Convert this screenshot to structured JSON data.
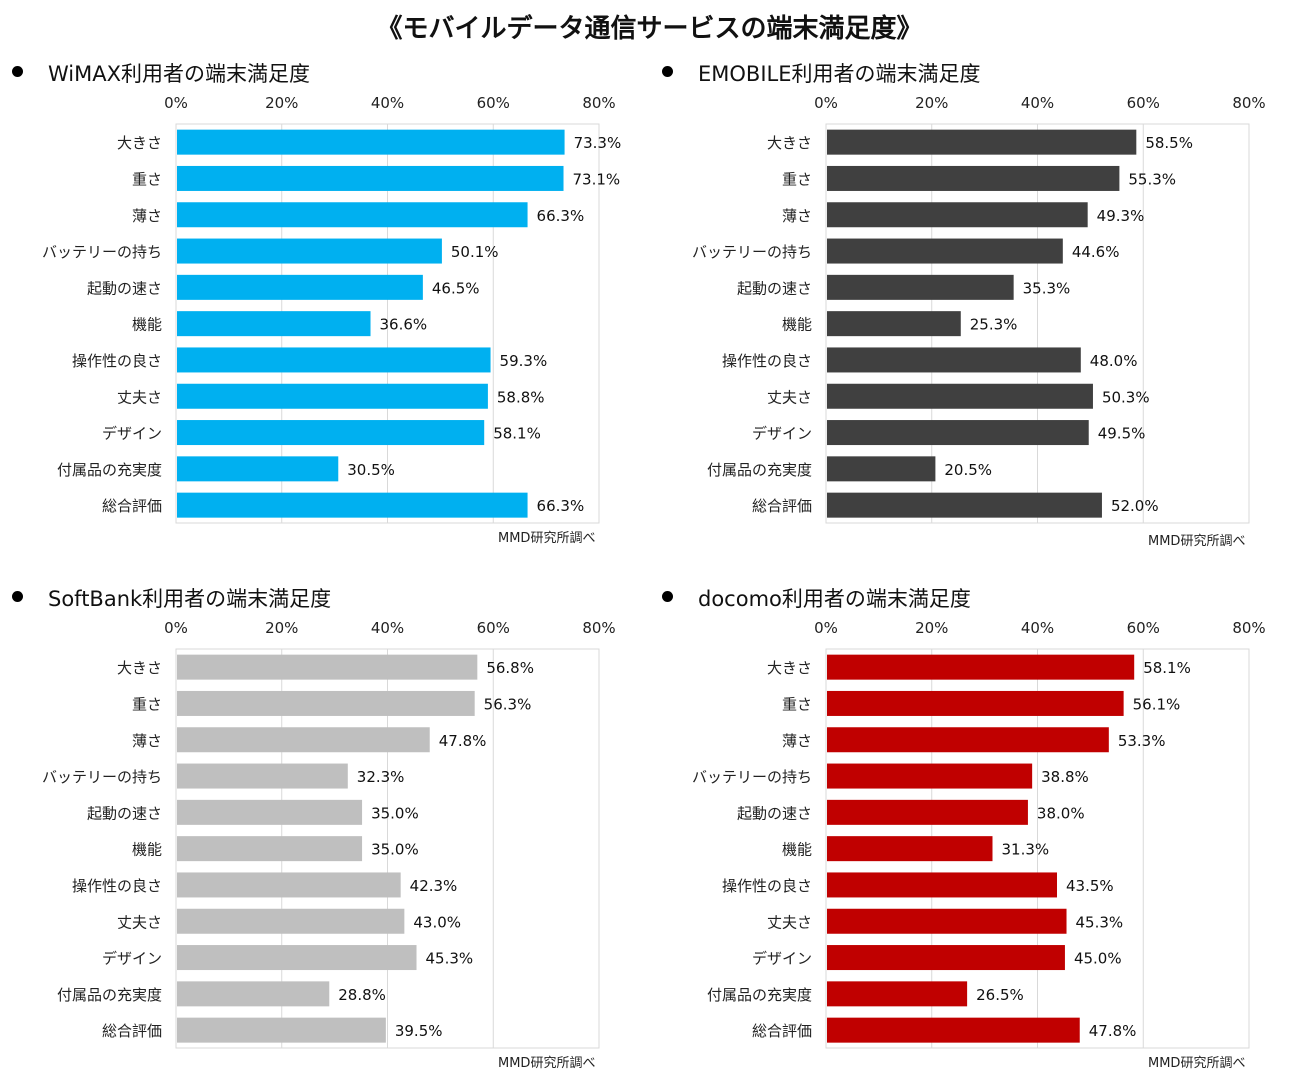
{
  "title": "《モバイルデータ通信サービスの端末満足度》",
  "source_note": "MMD研究所調べ",
  "x_ticks": [
    "0%",
    "20%",
    "40%",
    "60%",
    "80%"
  ],
  "categories": [
    "大きさ",
    "重さ",
    "薄さ",
    "バッテリーの持ち",
    "起動の速さ",
    "機能",
    "操作性の良さ",
    "丈夫さ",
    "デザイン",
    "付属品の充実度",
    "総合評価"
  ],
  "chart_data": [
    {
      "type": "bar",
      "orientation": "horizontal",
      "title": "WiMAX利用者の端末満足度",
      "categories": [
        "大きさ",
        "重さ",
        "薄さ",
        "バッテリーの持ち",
        "起動の速さ",
        "機能",
        "操作性の良さ",
        "丈夫さ",
        "デザイン",
        "付属品の充実度",
        "総合評価"
      ],
      "values": [
        73.3,
        73.1,
        66.3,
        50.1,
        46.5,
        36.6,
        59.3,
        58.8,
        58.1,
        30.5,
        66.3
      ],
      "labels": [
        "73.3%",
        "73.1%",
        "66.3%",
        "50.1%",
        "46.5%",
        "36.6%",
        "59.3%",
        "58.8%",
        "58.1%",
        "30.5%",
        "66.3%"
      ],
      "xlim": [
        0,
        80
      ],
      "color": "#00b0f0",
      "grid": true
    },
    {
      "type": "bar",
      "orientation": "horizontal",
      "title": "EMOBILE利用者の端末満足度",
      "categories": [
        "大きさ",
        "重さ",
        "薄さ",
        "バッテリーの持ち",
        "起動の速さ",
        "機能",
        "操作性の良さ",
        "丈夫さ",
        "デザイン",
        "付属品の充実度",
        "総合評価"
      ],
      "values": [
        58.5,
        55.3,
        49.3,
        44.6,
        35.3,
        25.3,
        48.0,
        50.3,
        49.5,
        20.5,
        52.0
      ],
      "labels": [
        "58.5%",
        "55.3%",
        "49.3%",
        "44.6%",
        "35.3%",
        "25.3%",
        "48.0%",
        "50.3%",
        "49.5%",
        "20.5%",
        "52.0%"
      ],
      "xlim": [
        0,
        80
      ],
      "color": "#404040",
      "grid": true
    },
    {
      "type": "bar",
      "orientation": "horizontal",
      "title": "SoftBank利用者の端末満足度",
      "categories": [
        "大きさ",
        "重さ",
        "薄さ",
        "バッテリーの持ち",
        "起動の速さ",
        "機能",
        "操作性の良さ",
        "丈夫さ",
        "デザイン",
        "付属品の充実度",
        "総合評価"
      ],
      "values": [
        56.8,
        56.3,
        47.8,
        32.3,
        35.0,
        35.0,
        42.3,
        43.0,
        45.3,
        28.8,
        39.5
      ],
      "labels": [
        "56.8%",
        "56.3%",
        "47.8%",
        "32.3%",
        "35.0%",
        "35.0%",
        "42.3%",
        "43.0%",
        "45.3%",
        "28.8%",
        "39.5%"
      ],
      "xlim": [
        0,
        80
      ],
      "color": "#bfbfbf",
      "grid": true
    },
    {
      "type": "bar",
      "orientation": "horizontal",
      "title": "docomo利用者の端末満足度",
      "categories": [
        "大きさ",
        "重さ",
        "薄さ",
        "バッテリーの持ち",
        "起動の速さ",
        "機能",
        "操作性の良さ",
        "丈夫さ",
        "デザイン",
        "付属品の充実度",
        "総合評価"
      ],
      "values": [
        58.1,
        56.1,
        53.3,
        38.8,
        38.0,
        31.3,
        43.5,
        45.3,
        45.0,
        26.5,
        47.8
      ],
      "labels": [
        "58.1%",
        "56.1%",
        "53.3%",
        "38.8%",
        "38.0%",
        "31.3%",
        "43.5%",
        "45.3%",
        "45.0%",
        "26.5%",
        "47.8%"
      ],
      "xlim": [
        0,
        80
      ],
      "color": "#c00000",
      "grid": true
    }
  ]
}
